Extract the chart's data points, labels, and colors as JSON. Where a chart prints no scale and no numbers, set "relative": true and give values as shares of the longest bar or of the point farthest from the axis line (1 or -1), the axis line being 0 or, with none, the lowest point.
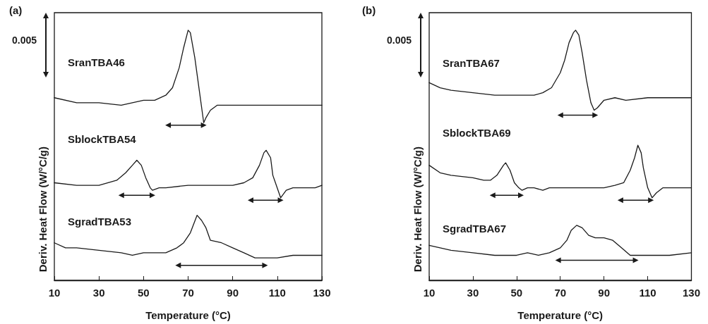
{
  "chart_data": [
    {
      "type": "line",
      "title": "(a)",
      "xlabel": "Temperature (°C)",
      "ylabel": "Deriv. Heat Flow (W/°C/g)",
      "relative": true,
      "marker": "none",
      "line_style": "solid",
      "annotations": [
        "0.005"
      ],
      "xlim": [
        10,
        130
      ],
      "xticks": [
        10,
        30,
        50,
        70,
        90,
        110,
        130
      ],
      "series": [
        {
          "name": "SranTBA46",
          "color": "#1a1a1a",
          "x": [
            10,
            20,
            30,
            40,
            50,
            55,
            60,
            63,
            66,
            68,
            70,
            71,
            73,
            75,
            77,
            78,
            80,
            83,
            90,
            100,
            110,
            120,
            130
          ],
          "values": [
            0.73,
            0.71,
            0.71,
            0.7,
            0.72,
            0.72,
            0.74,
            0.77,
            0.85,
            0.93,
            1.0,
            0.99,
            0.89,
            0.76,
            0.63,
            0.65,
            0.68,
            0.7,
            0.7,
            0.7,
            0.7,
            0.7,
            0.7
          ]
        },
        {
          "name": "SblockTBA54",
          "color": "#1a1a1a",
          "x": [
            10,
            20,
            30,
            38,
            42,
            45,
            47,
            49,
            51,
            53,
            54,
            57,
            60,
            70,
            80,
            90,
            95,
            99,
            102,
            104,
            105,
            107,
            108,
            111.5,
            114,
            117,
            120,
            127,
            130
          ],
          "values": [
            0.39,
            0.38,
            0.38,
            0.4,
            0.43,
            0.46,
            0.48,
            0.46,
            0.41,
            0.37,
            0.36,
            0.37,
            0.37,
            0.38,
            0.38,
            0.38,
            0.39,
            0.41,
            0.46,
            0.51,
            0.52,
            0.49,
            0.42,
            0.33,
            0.36,
            0.37,
            0.37,
            0.37,
            0.38
          ]
        },
        {
          "name": "SgradTBA53",
          "color": "#1a1a1a",
          "x": [
            10,
            15,
            20,
            30,
            40,
            45,
            50,
            55,
            60,
            65,
            68,
            71,
            74,
            76,
            78,
            80,
            85,
            90,
            95,
            100,
            104,
            110,
            117,
            130
          ],
          "values": [
            0.15,
            0.13,
            0.13,
            0.12,
            0.11,
            0.1,
            0.11,
            0.11,
            0.11,
            0.13,
            0.15,
            0.19,
            0.26,
            0.24,
            0.21,
            0.16,
            0.15,
            0.13,
            0.11,
            0.09,
            0.09,
            0.09,
            0.1,
            0.1
          ]
        },
        {
          "color": "#1a1a1a",
          "marker": "triangle",
          "x": [
            61,
            77
          ],
          "values": [
            0.62,
            0.62
          ]
        },
        {
          "color": "#1a1a1a",
          "marker": "triangle",
          "x": [
            40,
            54
          ],
          "values": [
            0.34,
            0.34
          ]
        },
        {
          "color": "#1a1a1a",
          "marker": "triangle",
          "x": [
            98,
            111.5
          ],
          "values": [
            0.32,
            0.32
          ]
        },
        {
          "color": "#1a1a1a",
          "marker": "triangle",
          "x": [
            65.5,
            104.5
          ],
          "values": [
            0.06,
            0.06
          ]
        }
      ]
    },
    {
      "type": "line",
      "title": "(b)",
      "xlabel": "Temperature (°C)",
      "ylabel": "Deriv. Heat Flow (W/°C/g)",
      "relative": true,
      "marker": "none",
      "line_style": "solid",
      "annotations": [
        "0.005"
      ],
      "xlim": [
        10,
        130
      ],
      "xticks": [
        10,
        30,
        50,
        70,
        90,
        110,
        130
      ],
      "series": [
        {
          "name": "SranTBA67",
          "color": "#1a1a1a",
          "x": [
            10,
            15,
            20,
            30,
            40,
            50,
            58,
            62,
            66,
            70,
            72,
            74,
            76,
            77,
            78.5,
            80,
            82,
            84,
            85.5,
            87,
            90,
            95,
            100,
            110,
            120,
            130
          ],
          "values": [
            0.79,
            0.77,
            0.76,
            0.75,
            0.74,
            0.74,
            0.74,
            0.75,
            0.77,
            0.83,
            0.88,
            0.95,
            0.99,
            1.0,
            0.98,
            0.91,
            0.8,
            0.71,
            0.68,
            0.69,
            0.72,
            0.73,
            0.72,
            0.73,
            0.73,
            0.73
          ]
        },
        {
          "name": "SblockTBA69",
          "color": "#1a1a1a",
          "x": [
            10,
            15,
            20,
            30,
            35,
            38,
            41,
            44,
            45,
            47,
            49,
            51,
            52.5,
            55,
            58,
            62,
            65,
            70,
            80,
            90,
            95,
            99,
            102,
            104,
            105.5,
            107,
            108,
            110,
            112,
            114,
            117,
            122,
            130
          ],
          "values": [
            0.46,
            0.43,
            0.42,
            0.41,
            0.4,
            0.4,
            0.42,
            0.46,
            0.47,
            0.44,
            0.39,
            0.37,
            0.36,
            0.37,
            0.37,
            0.36,
            0.37,
            0.37,
            0.37,
            0.37,
            0.38,
            0.39,
            0.44,
            0.49,
            0.54,
            0.51,
            0.45,
            0.37,
            0.33,
            0.35,
            0.37,
            0.37,
            0.37
          ]
        },
        {
          "name": "SgradTBA67",
          "color": "#1a1a1a",
          "x": [
            10,
            15,
            20,
            30,
            40,
            50,
            55,
            60,
            65,
            70,
            73,
            75,
            77.5,
            80,
            83,
            86,
            90,
            94,
            98,
            102,
            104.5,
            110,
            120,
            130
          ],
          "values": [
            0.14,
            0.13,
            0.12,
            0.11,
            0.1,
            0.1,
            0.11,
            0.1,
            0.11,
            0.13,
            0.16,
            0.2,
            0.22,
            0.21,
            0.18,
            0.17,
            0.17,
            0.16,
            0.13,
            0.1,
            0.1,
            0.1,
            0.1,
            0.11
          ]
        },
        {
          "color": "#1a1a1a",
          "marker": "triangle",
          "x": [
            70,
            86
          ],
          "values": [
            0.66,
            0.66
          ]
        },
        {
          "color": "#1a1a1a",
          "marker": "triangle",
          "x": [
            39,
            52
          ],
          "values": [
            0.34,
            0.34
          ]
        },
        {
          "color": "#1a1a1a",
          "marker": "triangle",
          "x": [
            97.5,
            111.5
          ],
          "values": [
            0.32,
            0.32
          ]
        },
        {
          "color": "#1a1a1a",
          "marker": "triangle",
          "x": [
            69,
            104.5
          ],
          "values": [
            0.08,
            0.08
          ]
        }
      ]
    }
  ]
}
